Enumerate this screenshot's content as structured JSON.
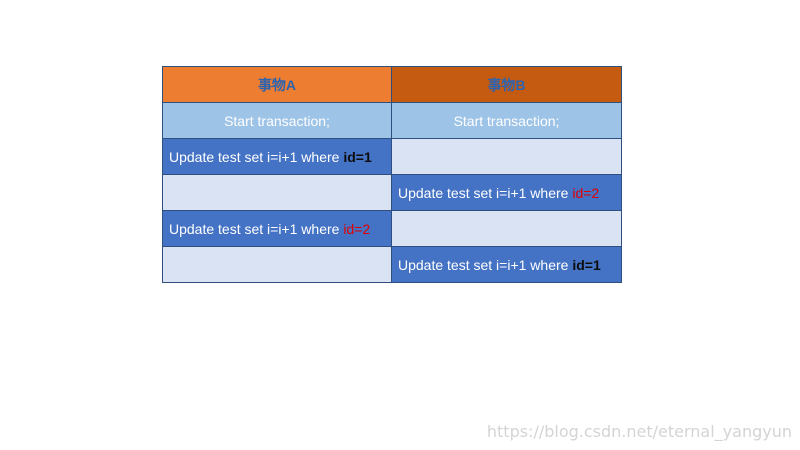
{
  "table": {
    "header": {
      "col_a": "事物A",
      "col_b": "事物B"
    },
    "rows": [
      {
        "a": "Start transaction;",
        "b": "Start transaction;"
      },
      {
        "a_prefix": "Update test set i=i+1 where ",
        "a_cond": "id=1"
      },
      {
        "b_prefix": "Update test set i=i+1 where ",
        "b_cond": "id=2"
      },
      {
        "a_prefix": "Update test set i=i+1 where ",
        "a_cond": "id=2"
      },
      {
        "b_prefix": "Update test set i=i+1 where ",
        "b_cond": "id=1"
      }
    ]
  },
  "watermark": "https://blog.csdn.net/eternal_yangyun",
  "colors": {
    "header_a": "#ed7d31",
    "header_b": "#c55a11",
    "start_row": "#9dc3e6",
    "operation_cell": "#4472c4",
    "empty_cell": "#dae3f3",
    "highlight_red": "#e00000"
  }
}
